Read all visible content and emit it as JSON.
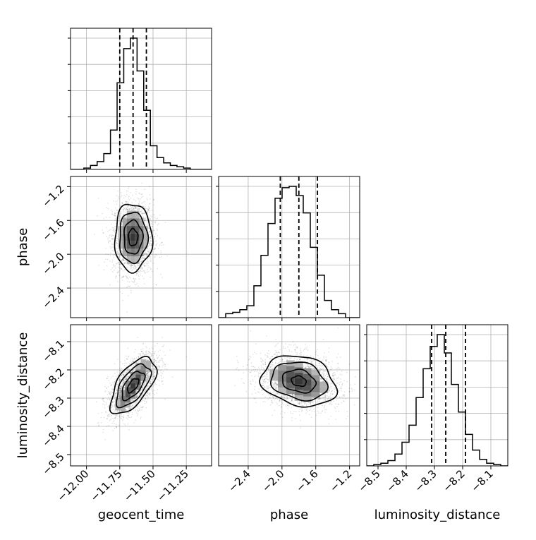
{
  "chart_data": {
    "type": "corner",
    "parameters": [
      {
        "name": "geocent_time",
        "xlabel": "geocent_time",
        "ylabel": "",
        "range": [
          -12.12,
          -11.06
        ],
        "ticks": [
          {
            "v": -12.0,
            "label": "−12.00"
          },
          {
            "v": -11.75,
            "label": "−11.75"
          },
          {
            "v": -11.5,
            "label": "−11.50"
          },
          {
            "v": -11.25,
            "label": "−11.25"
          }
        ],
        "quantiles": [
          -11.75,
          -11.65,
          -11.55
        ]
      },
      {
        "name": "phase",
        "xlabel": "phase",
        "ylabel": "phase",
        "range": [
          -2.75,
          -1.08
        ],
        "ticks": [
          {
            "v": -2.4,
            "label": "−2.4"
          },
          {
            "v": -2.0,
            "label": "−2.0"
          },
          {
            "v": -1.6,
            "label": "−1.6"
          },
          {
            "v": -1.2,
            "label": "−1.2"
          }
        ],
        "quantiles": [
          -2.02,
          -1.8,
          -1.58
        ]
      },
      {
        "name": "luminosity_distance",
        "xlabel": "luminosity_distance",
        "ylabel": "luminosity_distance",
        "range": [
          -8.54,
          -8.04
        ],
        "ticks": [
          {
            "v": -8.5,
            "label": "−8.5"
          },
          {
            "v": -8.4,
            "label": "−8.4"
          },
          {
            "v": -8.3,
            "label": "−8.3"
          },
          {
            "v": -8.2,
            "label": "−8.2"
          },
          {
            "v": -8.1,
            "label": "−8.1"
          }
        ],
        "quantiles": [
          -8.31,
          -8.26,
          -8.19
        ]
      }
    ],
    "histograms": [
      {
        "param": "geocent_time",
        "edges_start": -12.12,
        "bin_width": 0.05,
        "counts": [
          0,
          0,
          1,
          3,
          6,
          12,
          30,
          66,
          92,
          100,
          75,
          45,
          18,
          9,
          5,
          3,
          2,
          1,
          0,
          0,
          0
        ]
      },
      {
        "param": "phase",
        "edges_start": -2.75,
        "bin_width": 0.0835,
        "counts": [
          0,
          3,
          4,
          6,
          9,
          24,
          47,
          71,
          90,
          98,
          99,
          92,
          79,
          53,
          32,
          13,
          6,
          3,
          0,
          0
        ]
      },
      {
        "param": "luminosity_distance",
        "edges_start": -8.54,
        "bin_width": 0.025,
        "counts": [
          0,
          1,
          2,
          4,
          9,
          18,
          31,
          52,
          74,
          91,
          100,
          86,
          62,
          41,
          24,
          12,
          5,
          2,
          1,
          0
        ]
      }
    ],
    "pairs": [
      {
        "x": "geocent_time",
        "y": "phase",
        "mean": [
          -11.65,
          -1.8
        ],
        "sd": [
          0.07,
          0.2
        ],
        "corr": 0.0,
        "contours": [
          0.5,
          1.0,
          1.5,
          2.0
        ]
      },
      {
        "x": "geocent_time",
        "y": "luminosity_distance",
        "mean": [
          -11.65,
          -8.255
        ],
        "sd": [
          0.085,
          0.05
        ],
        "corr": 0.6,
        "contours": [
          0.5,
          1.0,
          1.5,
          2.0
        ]
      },
      {
        "x": "phase",
        "y": "luminosity_distance",
        "mean": [
          -1.8,
          -8.24
        ],
        "sd": [
          0.22,
          0.045
        ],
        "corr": -0.2,
        "contours": [
          0.4,
          0.9,
          1.5,
          2.0
        ]
      }
    ],
    "grid": true,
    "line_color": "#000000",
    "grid_color": "#b0b0b0"
  }
}
